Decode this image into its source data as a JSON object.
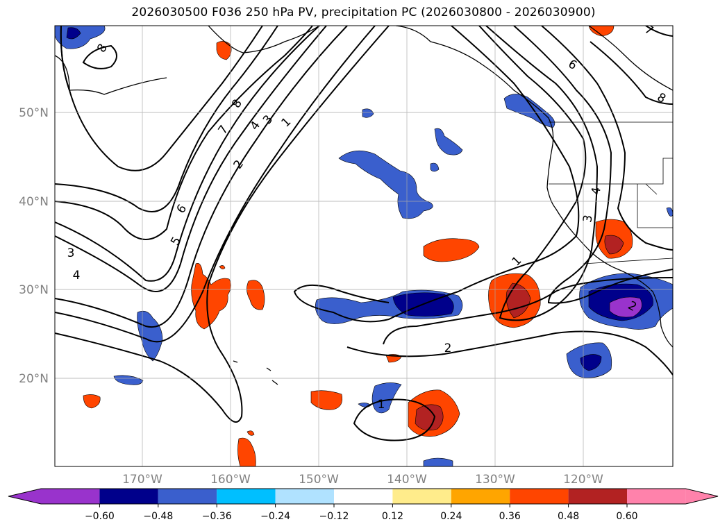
{
  "title": "2026030500 F036 250 hPa PV, precipitation PC (2026030800 - 2026030900)",
  "lat_labels": [
    "50°N",
    "40°N",
    "30°N",
    "20°N"
  ],
  "lon_labels": [
    "170°W",
    "160°W",
    "150°W",
    "140°W",
    "130°W",
    "120°W"
  ],
  "contour_labels": [
    "8",
    "7",
    "6",
    "5",
    "4",
    "3",
    "2",
    "1",
    "3",
    "4",
    "8",
    "6",
    "7",
    "8",
    "1",
    "2",
    "1",
    "3",
    "4",
    "2"
  ],
  "colorbar": {
    "ticks": [
      "−0.60",
      "−0.48",
      "−0.36",
      "−0.24",
      "−0.12",
      "0.12",
      "0.24",
      "0.36",
      "0.48",
      "0.60"
    ],
    "colors": [
      "#9933cc",
      "#00008b",
      "#3a5fcd",
      "#00bfff",
      "#b0e2ff",
      "#ffffff",
      "#ffec8b",
      "#ffa500",
      "#ff4500",
      "#b22222",
      "#ff82ab"
    ]
  }
}
